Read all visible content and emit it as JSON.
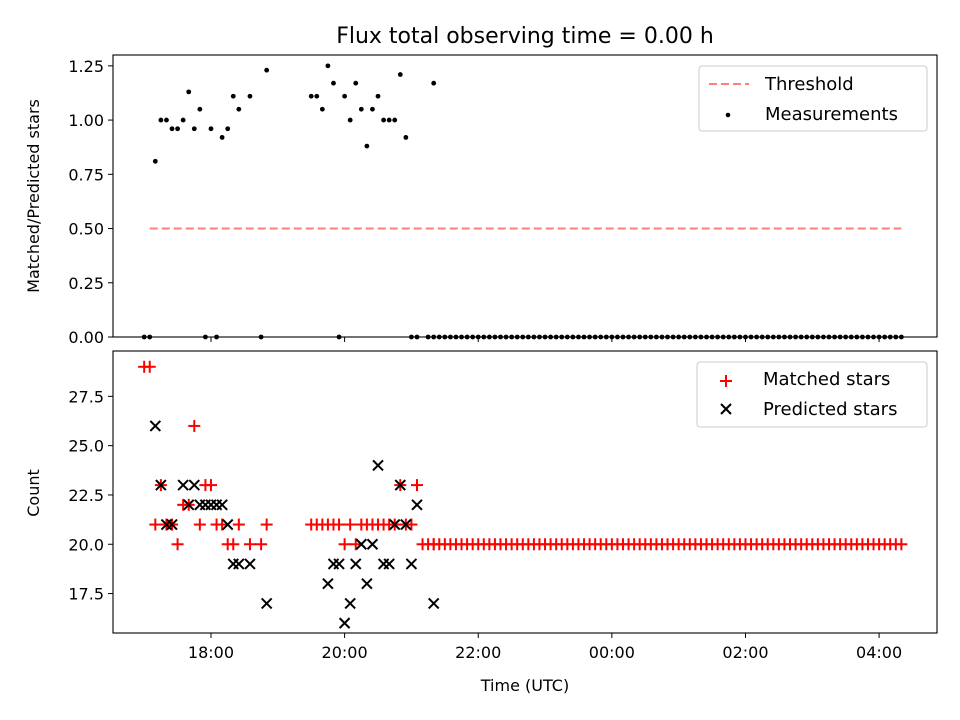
{
  "chart_data": [
    {
      "type": "scatter",
      "title": "Flux total observing time = 0.00 h",
      "xlabel": "",
      "ylabel": "Matched/Predicted stars",
      "xlim": [
        "16:32",
        "04:52"
      ],
      "ylim": [
        0,
        1.3
      ],
      "yticks": [
        "0.00",
        "0.25",
        "0.50",
        "0.75",
        "1.00",
        "1.25"
      ],
      "xticks": [
        "18:00",
        "20:00",
        "22:00",
        "00:00",
        "02:00",
        "04:00"
      ],
      "legend_position": "top-right",
      "series": [
        {
          "name": "Threshold",
          "style": "dashed-line",
          "color": "#ff7f7f",
          "x": [
            "17:05",
            "04:20"
          ],
          "y": [
            0.5,
            0.5
          ]
        },
        {
          "name": "Measurements",
          "style": "dot",
          "color": "#000000",
          "x": [
            "17:00",
            "17:05",
            "17:10",
            "17:15",
            "17:20",
            "17:25",
            "17:30",
            "17:35",
            "17:40",
            "17:45",
            "17:50",
            "17:55",
            "18:00",
            "18:05",
            "18:10",
            "18:15",
            "18:20",
            "18:25",
            "18:35",
            "18:45",
            "18:50",
            "19:30",
            "19:35",
            "19:40",
            "19:45",
            "19:50",
            "19:55",
            "20:00",
            "20:05",
            "20:10",
            "20:15",
            "20:20",
            "20:25",
            "20:30",
            "20:35",
            "20:40",
            "20:45",
            "20:50",
            "20:55",
            "21:00",
            "21:05",
            "21:20"
          ],
          "y": [
            0,
            0,
            0.81,
            1.0,
            1.0,
            0.96,
            0.96,
            1.0,
            1.13,
            0.96,
            1.05,
            0,
            0.96,
            0,
            0.92,
            0.96,
            1.11,
            1.05,
            1.11,
            0,
            1.23,
            1.11,
            1.11,
            1.05,
            1.25,
            1.17,
            0,
            1.11,
            1.0,
            1.17,
            1.05,
            0.88,
            1.05,
            1.11,
            1.0,
            1.0,
            1.0,
            1.21,
            0.92,
            0,
            0,
            1.17
          ],
          "baseline_zero_from_to": [
            "21:15",
            "04:20"
          ]
        }
      ]
    },
    {
      "type": "scatter",
      "title": "",
      "xlabel": "Time (UTC)",
      "ylabel": "Count",
      "xlim": [
        "16:32",
        "04:52"
      ],
      "ylim": [
        15.5,
        29.8
      ],
      "yticks": [
        "17.5",
        "20.0",
        "22.5",
        "25.0",
        "27.5"
      ],
      "xticks": [
        "18:00",
        "20:00",
        "22:00",
        "00:00",
        "02:00",
        "04:00"
      ],
      "legend_position": "top-right",
      "series": [
        {
          "name": "Matched stars",
          "marker": "plus",
          "color": "#ff0000",
          "x": [
            "17:00",
            "17:05",
            "17:10",
            "17:15",
            "17:20",
            "17:25",
            "17:30",
            "17:35",
            "17:40",
            "17:45",
            "17:50",
            "17:55",
            "18:00",
            "18:05",
            "18:10",
            "18:15",
            "18:20",
            "18:25",
            "18:35",
            "18:45",
            "18:50",
            "19:30",
            "19:35",
            "19:40",
            "19:45",
            "19:50",
            "19:55",
            "20:00",
            "20:05",
            "20:10",
            "20:15",
            "20:20",
            "20:25",
            "20:30",
            "20:35",
            "20:40",
            "20:45",
            "20:50",
            "20:55",
            "21:00",
            "21:05",
            "21:20"
          ],
          "y": [
            29,
            29,
            21,
            23,
            21,
            21,
            20,
            22,
            22,
            26,
            21,
            23,
            23,
            21,
            21,
            20,
            20,
            21,
            20,
            20,
            21,
            21,
            21,
            21,
            21,
            21,
            21,
            20,
            21,
            20,
            21,
            21,
            21,
            21,
            21,
            21,
            21,
            23,
            21,
            21,
            23,
            20
          ],
          "constant_value_from_to": {
            "value": 20,
            "from": "21:10",
            "to": "04:20",
            "step_minutes": 5
          }
        },
        {
          "name": "Predicted stars",
          "marker": "x",
          "color": "#000000",
          "x": [
            "17:10",
            "17:15",
            "17:20",
            "17:25",
            "17:35",
            "17:40",
            "17:45",
            "17:50",
            "17:55",
            "18:00",
            "18:05",
            "18:10",
            "18:15",
            "18:20",
            "18:25",
            "18:35",
            "18:50",
            "19:45",
            "19:50",
            "19:55",
            "20:00",
            "20:05",
            "20:10",
            "20:15",
            "20:20",
            "20:25",
            "20:30",
            "20:35",
            "20:40",
            "20:45",
            "20:50",
            "20:55",
            "21:00",
            "21:05",
            "21:20"
          ],
          "y": [
            26,
            23,
            21,
            21,
            23,
            22,
            23,
            22,
            22,
            22,
            22,
            22,
            21,
            19,
            19,
            19,
            17,
            18,
            19,
            19,
            16,
            17,
            19,
            20,
            18,
            20,
            24,
            19,
            19,
            21,
            23,
            21,
            19,
            22,
            17
          ]
        }
      ]
    }
  ]
}
